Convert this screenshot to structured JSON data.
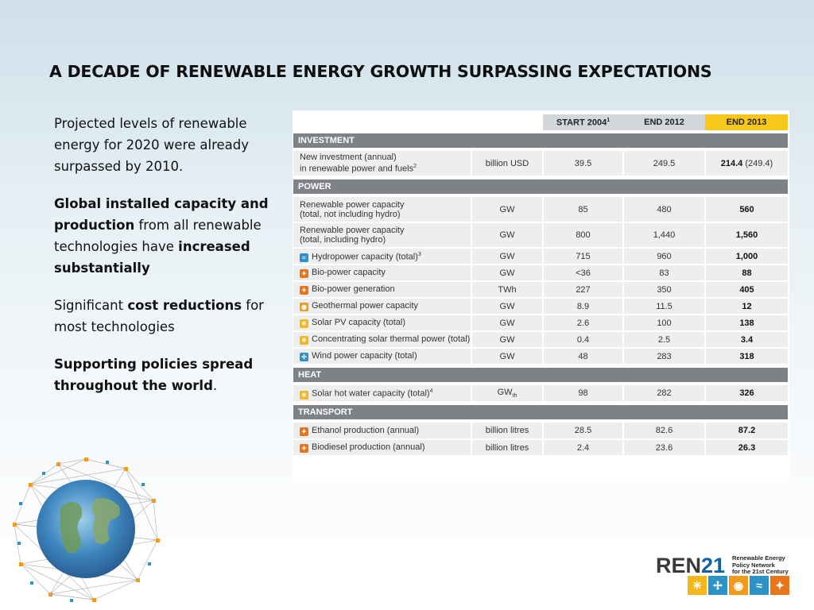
{
  "title": "A DECADE OF RENEWABLE ENERGY GROWTH SURPASSING EXPECTATIONS",
  "bullets": {
    "b1": "Projected levels of renewable energy for 2020 were already surpassed by 2010.",
    "b2_bold": "Global installed capacity and production",
    "b2_rest": " from all renewable technologies have ",
    "b2_bold2": "increased substantially",
    "b3_pre": "Significant ",
    "b3_bold": "cost reductions",
    "b3_rest": " for most technologies",
    "b4_bold": "Supporting policies spread throughout the world",
    "b4_end": "."
  },
  "table": {
    "headers": {
      "start": "START 2004",
      "start_sup": "1",
      "end2012": "END 2012",
      "end2013": "END 2013"
    },
    "sections": {
      "investment": "INVESTMENT",
      "power": "POWER",
      "heat": "HEAT",
      "transport": "TRANSPORT"
    },
    "investment_row": {
      "label1": "New investment (annual)",
      "label2": "in renewable power and fuels",
      "sup": "2",
      "unit": "billion USD",
      "v2004": "39.5",
      "v2012": "249.5",
      "v2013": "214.4",
      "v2013_note": " (249.4)"
    },
    "power_rows": [
      {
        "l1": "Renewable power capacity",
        "l2": "(total, not including hydro)",
        "unit": "GW",
        "v2004": "85",
        "v2012": "480",
        "v2013": "560"
      },
      {
        "l1": "Renewable power capacity",
        "l2": "(total, including hydro)",
        "unit": "GW",
        "v2004": "800",
        "v2012": "1,440",
        "v2013": "1,560"
      },
      {
        "label": "Hydropower capacity (total)",
        "sup": "3",
        "icon": "hydro-icon",
        "unit": "GW",
        "v2004": "715",
        "v2012": "960",
        "v2013": "1,000"
      },
      {
        "label": "Bio-power capacity",
        "icon": "bio-icon",
        "unit": "GW",
        "v2004": "<36",
        "v2012": "83",
        "v2013": "88"
      },
      {
        "label": "Bio-power generation",
        "icon": "bio-icon",
        "unit": "TWh",
        "v2004": "227",
        "v2012": "350",
        "v2013": "405"
      },
      {
        "label": "Geothermal power capacity",
        "icon": "geothermal-icon",
        "unit": "GW",
        "v2004": "8.9",
        "v2012": "11.5",
        "v2013": "12"
      },
      {
        "label": "Solar PV capacity (total)",
        "icon": "solar-icon",
        "unit": "GW",
        "v2004": "2.6",
        "v2012": "100",
        "v2013": "138"
      },
      {
        "label": "Concentrating solar thermal power (total)",
        "icon": "solar-icon",
        "unit": "GW",
        "v2004": "0.4",
        "v2012": "2.5",
        "v2013": "3.4"
      },
      {
        "label": "Wind power capacity (total)",
        "icon": "wind-icon",
        "unit": "GW",
        "v2004": "48",
        "v2012": "283",
        "v2013": "318"
      }
    ],
    "heat_row": {
      "label": "Solar hot water capacity (total)",
      "sup": "4",
      "unit": "GW",
      "unit_sub": "th",
      "v2004": "98",
      "v2012": "282",
      "v2013": "326"
    },
    "transport_rows": [
      {
        "label": "Ethanol production (annual)",
        "unit": "billion litres",
        "v2004": "28.5",
        "v2012": "82.6",
        "v2013": "87.2"
      },
      {
        "label": "Biodiesel production (annual)",
        "unit": "billion litres",
        "v2004": "2.4",
        "v2012": "23.6",
        "v2013": "26.3"
      }
    ]
  },
  "logo": {
    "ren": "REN",
    "num": "21",
    "sub1": "Renewable Energy",
    "sub2": "Policy Network",
    "sub3": "for the 21st Century"
  },
  "colors": {
    "accent_yellow": "#f7c71a",
    "section_gray": "#7e8185",
    "logo_blue": "#0f63a4",
    "logo_orange": "#e8751a"
  }
}
